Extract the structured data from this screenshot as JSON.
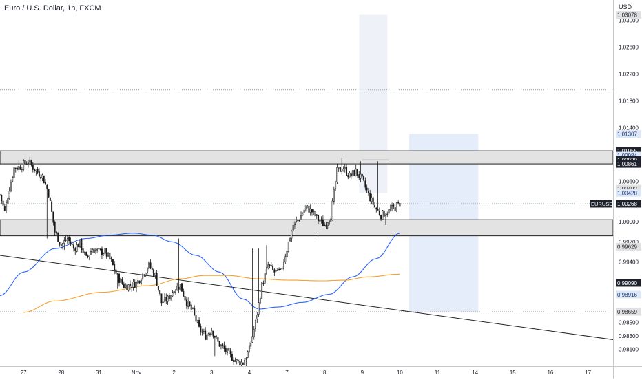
{
  "header": {
    "title": "Euro / U.S. Dollar, 1h, FXCM",
    "currency": "USD"
  },
  "colors": {
    "candle": "#1a1a1a",
    "ma_blue": "#2962ff",
    "ma_orange": "#f7a12b",
    "zone_fill": "#e3e3e3",
    "shade_fill": "#eef2f8",
    "projection_fill": "#e4edf9",
    "dotted": "#8aa6a6",
    "axis_text": "#131722"
  },
  "chart_data": {
    "type": "candlestick",
    "symbol": "EURUSD",
    "timeframe": "1h",
    "y_ticks": [
      "1.03000",
      "1.02600",
      "1.02200",
      "1.01800",
      "1.01400",
      "1.00600",
      "1.00000",
      "0.99700",
      "0.99400",
      "0.98500",
      "0.98300",
      "0.98100"
    ],
    "ylim": [
      0.9785,
      1.033
    ],
    "x_ticks": [
      {
        "label": "27",
        "i": 0
      },
      {
        "label": "28",
        "i": 24
      },
      {
        "label": "31",
        "i": 48
      },
      {
        "label": "Nov",
        "i": 72
      },
      {
        "label": "2",
        "i": 96
      },
      {
        "label": "3",
        "i": 120
      },
      {
        "label": "4",
        "i": 144
      },
      {
        "label": "7",
        "i": 168
      },
      {
        "label": "8",
        "i": 192
      },
      {
        "label": "9",
        "i": 216
      },
      {
        "label": "10",
        "i": 240
      },
      {
        "label": "11",
        "i": 264
      },
      {
        "label": "14",
        "i": 288
      },
      {
        "label": "15",
        "i": 312
      },
      {
        "label": "16",
        "i": 336
      },
      {
        "label": "17",
        "i": 360
      }
    ],
    "xlim": [
      -15,
      376
    ],
    "price_labels": [
      {
        "value": "1.03078",
        "price": 1.03078,
        "style": "gray"
      },
      {
        "value": "1.01307",
        "price": 1.01307,
        "style": "blue"
      },
      {
        "value": "1.01055",
        "price": 1.01055,
        "style": "dark"
      },
      {
        "value": "1.00984",
        "price": 1.00984,
        "style": "blue"
      },
      {
        "value": "1.00920",
        "price": 1.0092,
        "style": "dark"
      },
      {
        "value": "1.00861",
        "price": 1.00861,
        "style": "dark"
      },
      {
        "value": "1.00492",
        "price": 1.00492,
        "style": "gray"
      },
      {
        "value": "1.00428",
        "price": 1.00428,
        "style": "blue"
      },
      {
        "value": "1.00268",
        "price": 1.00268,
        "style": "dark",
        "tag": "EURUSD"
      },
      {
        "value": "0.99629",
        "price": 0.99629,
        "style": "gray"
      },
      {
        "value": "0.99090",
        "price": 0.9909,
        "style": "dark"
      },
      {
        "value": "0.98916",
        "price": 0.98916,
        "style": "blue"
      },
      {
        "value": "0.98659",
        "price": 0.98659,
        "style": "gray"
      }
    ],
    "zones": [
      {
        "name": "resistance",
        "from": 1.00861,
        "to": 1.01055
      },
      {
        "name": "support",
        "from": 0.9979,
        "to": 1.0003
      }
    ],
    "dotted_levels": [
      1.0196,
      1.00268,
      0.98659
    ],
    "trendline": {
      "from": {
        "i": -15,
        "p": 0.995
      },
      "to": {
        "i": 376,
        "p": 0.98245
      }
    },
    "shade": {
      "from_i": 214,
      "to_i": 232,
      "top": 1.03078,
      "bottom": 1.00428
    },
    "projection": {
      "from_i": 246,
      "to_i": 290,
      "top": 1.01307,
      "bottom": 0.98659,
      "line": 1.00984
    },
    "small_line": {
      "from_i": 216,
      "to_i": 233,
      "p": 1.0092
    },
    "anchors": [
      {
        "i": -15,
        "p": 1.004
      },
      {
        "i": -12,
        "p": 1.0015
      },
      {
        "i": -9,
        "p": 1.005
      },
      {
        "i": -6,
        "p": 1.008
      },
      {
        "i": -2,
        "p": 1.0082
      },
      {
        "i": 3,
        "p": 1.009
      },
      {
        "i": 7,
        "p": 1.0078
      },
      {
        "i": 12,
        "p": 1.0068
      },
      {
        "i": 16,
        "p": 1.0042
      },
      {
        "i": 20,
        "p": 0.9985
      },
      {
        "i": 24,
        "p": 0.9965
      },
      {
        "i": 28,
        "p": 0.9975
      },
      {
        "i": 32,
        "p": 0.996
      },
      {
        "i": 36,
        "p": 0.9968
      },
      {
        "i": 40,
        "p": 0.9945
      },
      {
        "i": 44,
        "p": 0.996
      },
      {
        "i": 48,
        "p": 0.9955
      },
      {
        "i": 52,
        "p": 0.9955
      },
      {
        "i": 56,
        "p": 0.994
      },
      {
        "i": 60,
        "p": 0.9918
      },
      {
        "i": 64,
        "p": 0.9905
      },
      {
        "i": 68,
        "p": 0.9905
      },
      {
        "i": 72,
        "p": 0.9908
      },
      {
        "i": 76,
        "p": 0.9922
      },
      {
        "i": 80,
        "p": 0.9935
      },
      {
        "i": 84,
        "p": 0.992
      },
      {
        "i": 88,
        "p": 0.988
      },
      {
        "i": 92,
        "p": 0.9885
      },
      {
        "i": 96,
        "p": 0.99
      },
      {
        "i": 100,
        "p": 0.9905
      },
      {
        "i": 104,
        "p": 0.988
      },
      {
        "i": 108,
        "p": 0.9866
      },
      {
        "i": 112,
        "p": 0.984
      },
      {
        "i": 116,
        "p": 0.983
      },
      {
        "i": 120,
        "p": 0.984
      },
      {
        "i": 124,
        "p": 0.982
      },
      {
        "i": 128,
        "p": 0.981
      },
      {
        "i": 132,
        "p": 0.98
      },
      {
        "i": 136,
        "p": 0.9792
      },
      {
        "i": 140,
        "p": 0.979
      },
      {
        "i": 144,
        "p": 0.981
      },
      {
        "i": 148,
        "p": 0.985
      },
      {
        "i": 152,
        "p": 0.9905
      },
      {
        "i": 156,
        "p": 0.9935
      },
      {
        "i": 160,
        "p": 0.9925
      },
      {
        "i": 164,
        "p": 0.9925
      },
      {
        "i": 168,
        "p": 0.996
      },
      {
        "i": 172,
        "p": 0.9995
      },
      {
        "i": 176,
        "p": 1.0005
      },
      {
        "i": 180,
        "p": 1.0022
      },
      {
        "i": 184,
        "p": 1.0015
      },
      {
        "i": 188,
        "p": 1.0003
      },
      {
        "i": 192,
        "p": 0.9995
      },
      {
        "i": 196,
        "p": 1.001
      },
      {
        "i": 200,
        "p": 1.0075
      },
      {
        "i": 204,
        "p": 1.008
      },
      {
        "i": 208,
        "p": 1.0068
      },
      {
        "i": 212,
        "p": 1.0075
      },
      {
        "i": 216,
        "p": 1.0062
      },
      {
        "i": 220,
        "p": 1.004
      },
      {
        "i": 224,
        "p": 1.0022
      },
      {
        "i": 228,
        "p": 1.001
      },
      {
        "i": 232,
        "p": 1.0015
      },
      {
        "i": 236,
        "p": 1.002
      },
      {
        "i": 240,
        "p": 1.0027
      }
    ],
    "spikes": [
      {
        "i": -3,
        "h": 1.0092
      },
      {
        "i": 15,
        "l": 0.9975
      },
      {
        "i": 26,
        "l": 0.9958
      },
      {
        "i": 60,
        "l": 0.99
      },
      {
        "i": 99,
        "h": 0.9975
      },
      {
        "i": 109,
        "l": 0.986
      },
      {
        "i": 122,
        "l": 0.98
      },
      {
        "i": 142,
        "l": 0.978
      },
      {
        "i": 146,
        "h": 0.996
      },
      {
        "i": 150,
        "h": 0.996
      },
      {
        "i": 155,
        "h": 0.9965
      },
      {
        "i": 186,
        "l": 0.997
      },
      {
        "i": 203,
        "h": 1.0095
      },
      {
        "i": 208,
        "h": 1.0075
      },
      {
        "i": 215,
        "h": 1.009
      },
      {
        "i": 226,
        "h": 1.009
      },
      {
        "i": 231,
        "l": 0.9995
      }
    ],
    "series": [
      {
        "name": "",
        "color": "#2962ff",
        "points": [
          {
            "i": -15,
            "p": 0.989
          },
          {
            "i": 0,
            "p": 0.9925
          },
          {
            "i": 20,
            "p": 0.996
          },
          {
            "i": 40,
            "p": 0.9975
          },
          {
            "i": 55,
            "p": 0.998
          },
          {
            "i": 70,
            "p": 0.9983
          },
          {
            "i": 82,
            "p": 0.998
          },
          {
            "i": 95,
            "p": 0.997
          },
          {
            "i": 110,
            "p": 0.995
          },
          {
            "i": 125,
            "p": 0.9925
          },
          {
            "i": 140,
            "p": 0.9885
          },
          {
            "i": 150,
            "p": 0.987
          },
          {
            "i": 162,
            "p": 0.9873
          },
          {
            "i": 178,
            "p": 0.988
          },
          {
            "i": 195,
            "p": 0.9892
          },
          {
            "i": 210,
            "p": 0.9918
          },
          {
            "i": 225,
            "p": 0.9945
          },
          {
            "i": 240,
            "p": 0.9983
          }
        ]
      },
      {
        "name": "",
        "color": "#f7a12b",
        "points": [
          {
            "i": 0,
            "p": 0.9865
          },
          {
            "i": 20,
            "p": 0.9882
          },
          {
            "i": 50,
            "p": 0.9895
          },
          {
            "i": 80,
            "p": 0.9905
          },
          {
            "i": 100,
            "p": 0.9915
          },
          {
            "i": 115,
            "p": 0.992
          },
          {
            "i": 130,
            "p": 0.992
          },
          {
            "i": 150,
            "p": 0.9915
          },
          {
            "i": 170,
            "p": 0.9913
          },
          {
            "i": 190,
            "p": 0.9912
          },
          {
            "i": 205,
            "p": 0.9913
          },
          {
            "i": 220,
            "p": 0.9918
          },
          {
            "i": 240,
            "p": 0.9922
          }
        ]
      }
    ]
  }
}
